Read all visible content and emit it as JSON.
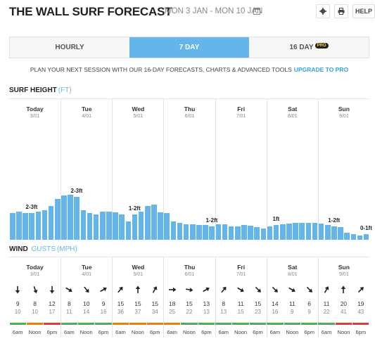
{
  "header": {
    "title": "THE WALL SURF FORECAST",
    "dates": "MON 3 JAN - MON 10 JAN",
    "help_label": "HELP"
  },
  "tabs": [
    {
      "label": "HOURLY",
      "active": false
    },
    {
      "label": "7 DAY",
      "active": true
    },
    {
      "label": "16 DAY",
      "active": false,
      "badge": "PRO"
    }
  ],
  "promo": {
    "text": "PLAN YOUR NEXT SESSION WITH OUR 16-DAY FORECASTS, CHARTS & ADVANCED TOOLS",
    "link": "UPGRADE TO PRO"
  },
  "surf": {
    "title": "SURF HEIGHT",
    "unit": "(FT)",
    "days": [
      {
        "name": "Today",
        "date": "3/01"
      },
      {
        "name": "Tue",
        "date": "4/01"
      },
      {
        "name": "Wed",
        "date": "5/01"
      },
      {
        "name": "Thu",
        "date": "6/01"
      },
      {
        "name": "Fri",
        "date": "7/01"
      },
      {
        "name": "Sat",
        "date": "8/01"
      },
      {
        "name": "Sun",
        "date": "9/01"
      }
    ],
    "labels": [
      "2-3ft",
      "2-3ft",
      "1-2ft",
      "1-2ft",
      "1ft",
      "1-2ft",
      "0-1ft"
    ],
    "heights": [
      0.94,
      1.0,
      0.96,
      0.94,
      1.0,
      1.04,
      1.2,
      1.44,
      1.57,
      1.61,
      1.53,
      1.05,
      0.96,
      0.9,
      1.0,
      1.0,
      0.98,
      0.9,
      0.65,
      0.9,
      1.0,
      1.2,
      1.24,
      0.98,
      0.94,
      0.65,
      0.6,
      0.55,
      0.55,
      0.52,
      0.52,
      0.48,
      0.55,
      0.55,
      0.48,
      0.48,
      0.52,
      0.5,
      0.44,
      0.4,
      0.48,
      0.52,
      0.55,
      0.57,
      0.6,
      0.6,
      0.6,
      0.6,
      0.57,
      0.52,
      0.48,
      0.44,
      0.25,
      0.2,
      0.16,
      0.2
    ]
  },
  "wind": {
    "title": "WIND",
    "subtitle": "GUSTS",
    "unit": "(MPH)",
    "days": [
      {
        "name": "Today",
        "date": "3/01"
      },
      {
        "name": "Tue",
        "date": "4/01"
      },
      {
        "name": "Wed",
        "date": "5/01"
      },
      {
        "name": "Thu",
        "date": "6/01"
      },
      {
        "name": "Fri",
        "date": "7/01"
      },
      {
        "name": "Sat",
        "date": "8/01"
      },
      {
        "name": "Sun",
        "date": "9/01"
      }
    ],
    "cells": [
      {
        "speed": "9",
        "gust": "10",
        "dir": 180,
        "time": "6am",
        "color": "#4caf50"
      },
      {
        "speed": "8",
        "gust": "10",
        "dir": 160,
        "time": "Noon",
        "color": "#f57c00"
      },
      {
        "speed": "12",
        "gust": "17",
        "dir": 180,
        "time": "6pm",
        "color": "#e53935"
      },
      {
        "speed": "8",
        "gust": "11",
        "dir": 120,
        "time": "6am",
        "color": "#4caf50"
      },
      {
        "speed": "10",
        "gust": "14",
        "dir": 140,
        "time": "Noon",
        "color": "#4caf50"
      },
      {
        "speed": "9",
        "gust": "16",
        "dir": 60,
        "time": "6pm",
        "color": "#4caf50"
      },
      {
        "speed": "15",
        "gust": "36",
        "dir": 40,
        "time": "6am",
        "color": "#f57c00"
      },
      {
        "speed": "15",
        "gust": "37",
        "dir": 0,
        "time": "Noon",
        "color": "#f57c00"
      },
      {
        "speed": "15",
        "gust": "34",
        "dir": 30,
        "time": "6pm",
        "color": "#f57c00"
      },
      {
        "speed": "18",
        "gust": "25",
        "dir": 90,
        "time": "6am",
        "color": "#f57c00"
      },
      {
        "speed": "15",
        "gust": "22",
        "dir": 100,
        "time": "Noon",
        "color": "#4caf50"
      },
      {
        "speed": "13",
        "gust": "13",
        "dir": 60,
        "time": "6pm",
        "color": "#4caf50"
      },
      {
        "speed": "8",
        "gust": "13",
        "dir": 40,
        "time": "6am",
        "color": "#4caf50"
      },
      {
        "speed": "11",
        "gust": "15",
        "dir": 120,
        "time": "Noon",
        "color": "#4caf50"
      },
      {
        "speed": "15",
        "gust": "23",
        "dir": 135,
        "time": "6pm",
        "color": "#4caf50"
      },
      {
        "speed": "14",
        "gust": "16",
        "dir": 135,
        "time": "6am",
        "color": "#4caf50"
      },
      {
        "speed": "11",
        "gust": "9",
        "dir": 120,
        "time": "Noon",
        "color": "#4caf50"
      },
      {
        "speed": "6",
        "gust": "9",
        "dir": 135,
        "time": "6pm",
        "color": "#4caf50"
      },
      {
        "speed": "11",
        "gust": "22",
        "dir": 30,
        "time": "6am",
        "color": "#4caf50"
      },
      {
        "speed": "20",
        "gust": "41",
        "dir": 0,
        "time": "Noon",
        "color": "#e53935"
      },
      {
        "speed": "19",
        "gust": "43",
        "dir": 45,
        "time": "6pm",
        "color": "#e53935"
      }
    ]
  }
}
